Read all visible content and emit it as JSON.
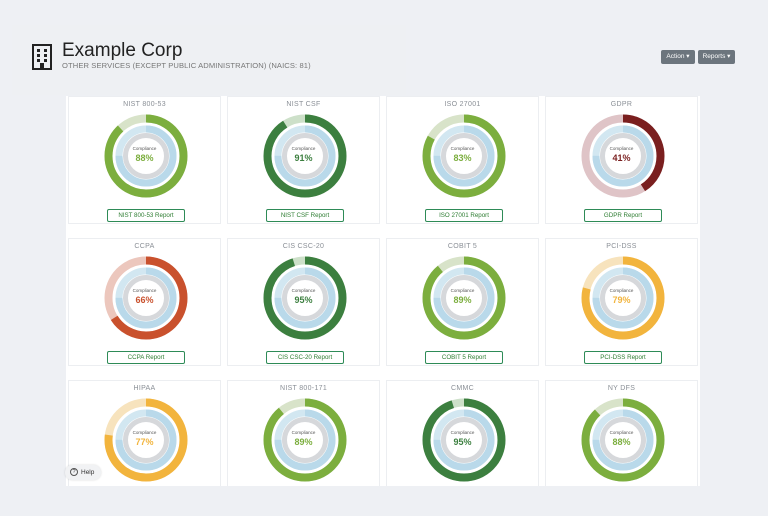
{
  "company": {
    "name": "Example Corp",
    "industry": "OTHER SERVICES (EXCEPT PUBLIC ADMINISTRATION) (NAICS: 81)"
  },
  "toolbar": {
    "action_label": "Action ▾",
    "reports_label": "Reports ▾"
  },
  "compliance_label": "Compliance",
  "frameworks": [
    {
      "name": "NIST 800-53",
      "percent_text": "88%",
      "value": 88,
      "color": "#7cae3e",
      "track": "#d8e3c9",
      "report": "NIST 800-53 Report"
    },
    {
      "name": "NIST CSF",
      "percent_text": "91%",
      "value": 91,
      "color": "#3c7f3f",
      "track": "#cde0c9",
      "report": "NIST CSF Report"
    },
    {
      "name": "ISO 27001",
      "percent_text": "83%",
      "value": 83,
      "color": "#7cae3e",
      "track": "#d8e3c9",
      "report": "ISO 27001 Report"
    },
    {
      "name": "GDPR",
      "percent_text": "41%",
      "value": 41,
      "color": "#7a1f1f",
      "track": "#dfc4c7",
      "report": "GDPR Report"
    },
    {
      "name": "CCPA",
      "percent_text": "66%",
      "value": 66,
      "color": "#c9512d",
      "track": "#ecc7bd",
      "report": "CCPA Report"
    },
    {
      "name": "CIS CSC-20",
      "percent_text": "95%",
      "value": 95,
      "color": "#3c7f3f",
      "track": "#cde0c9",
      "report": "CIS CSC-20 Report"
    },
    {
      "name": "COBIT 5",
      "percent_text": "89%",
      "value": 89,
      "color": "#7cae3e",
      "track": "#d8e3c9",
      "report": "COBIT 5 Report"
    },
    {
      "name": "PCI-DSS",
      "percent_text": "79%",
      "value": 79,
      "color": "#f2b43d",
      "track": "#f7e3bd",
      "report": "PCI-DSS Report"
    },
    {
      "name": "HIPAA",
      "percent_text": "77%",
      "value": 77,
      "color": "#f2b43d",
      "track": "#f7e3bd",
      "report": ""
    },
    {
      "name": "NIST 800-171",
      "percent_text": "89%",
      "value": 89,
      "color": "#7cae3e",
      "track": "#d8e3c9",
      "report": ""
    },
    {
      "name": "CMMC",
      "percent_text": "95%",
      "value": 95,
      "color": "#3c7f3f",
      "track": "#cde0c9",
      "report": ""
    },
    {
      "name": "NY DFS",
      "percent_text": "88%",
      "value": 88,
      "color": "#7cae3e",
      "track": "#d8e3c9",
      "report": ""
    }
  ],
  "help_label": "Help"
}
